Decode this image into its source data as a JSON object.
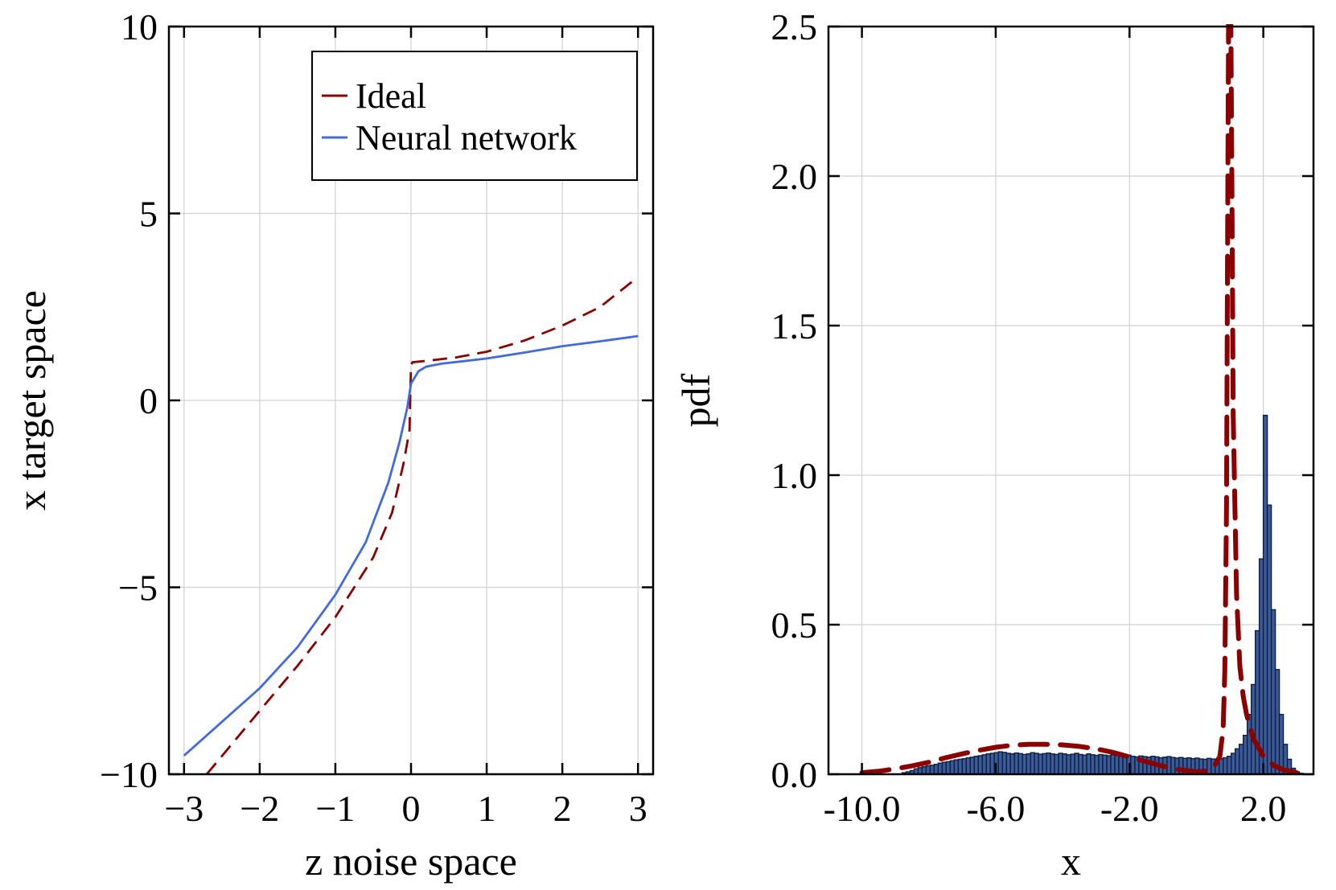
{
  "chart_data": [
    {
      "type": "line",
      "xlabel": "z noise space",
      "ylabel": "x target space",
      "xlim": [
        -3.2,
        3.2
      ],
      "ylim": [
        -10,
        10
      ],
      "xticks": [
        "−3",
        "−2",
        "−1",
        "0",
        "1",
        "2",
        "3"
      ],
      "yticks": [
        "−10",
        "−5",
        "0",
        "5",
        "10"
      ],
      "grid": true,
      "legend_position": "top-right",
      "colors": {
        "ideal": "#8b0000",
        "neural": "#4169e1"
      },
      "series": [
        {
          "name": "Ideal",
          "style": "dashed",
          "x": [
            -2.7,
            -2.0,
            -1.5,
            -1.0,
            -0.5,
            -0.25,
            -0.1,
            -0.02,
            0.0,
            0.02,
            0.3,
            0.6,
            1.0,
            1.5,
            2.0,
            2.5,
            3.0
          ],
          "y": [
            -10.0,
            -8.3,
            -7.1,
            -5.8,
            -4.2,
            -3.0,
            -1.7,
            -0.8,
            0.95,
            1.02,
            1.08,
            1.15,
            1.3,
            1.6,
            2.0,
            2.5,
            3.3
          ]
        },
        {
          "name": "Neural network",
          "style": "solid",
          "x": [
            -3.0,
            -2.5,
            -2.0,
            -1.5,
            -1.0,
            -0.6,
            -0.3,
            -0.15,
            -0.05,
            0.0,
            0.1,
            0.2,
            0.4,
            0.7,
            1.0,
            1.5,
            2.0,
            2.5,
            3.0
          ],
          "y": [
            -9.5,
            -8.6,
            -7.7,
            -6.6,
            -5.2,
            -3.8,
            -2.2,
            -1.1,
            -0.2,
            0.45,
            0.78,
            0.9,
            0.98,
            1.05,
            1.12,
            1.28,
            1.45,
            1.58,
            1.72
          ]
        }
      ]
    },
    {
      "type": "histogram",
      "xlabel": "x",
      "ylabel": "pdf",
      "xlim": [
        -11.0,
        3.5
      ],
      "ylim": [
        0,
        2.5
      ],
      "xticks": [
        "-10.0",
        "-6.0",
        "-2.0",
        "2.0"
      ],
      "yticks": [
        "0.0",
        "0.5",
        "1.0",
        "1.5",
        "2.0",
        "2.5"
      ],
      "grid": true,
      "colors": {
        "bars": "#3a5a9c",
        "bar_edge": "#10203a",
        "ideal": "#8b0000"
      },
      "bins": {
        "start": -8.8,
        "width": 0.12,
        "values": [
          0.005,
          0.008,
          0.012,
          0.018,
          0.022,
          0.025,
          0.028,
          0.03,
          0.033,
          0.037,
          0.04,
          0.042,
          0.045,
          0.048,
          0.05,
          0.052,
          0.055,
          0.057,
          0.06,
          0.062,
          0.065,
          0.068,
          0.07,
          0.072,
          0.075,
          0.073,
          0.07,
          0.068,
          0.071,
          0.069,
          0.066,
          0.068,
          0.072,
          0.07,
          0.067,
          0.069,
          0.071,
          0.068,
          0.066,
          0.07,
          0.068,
          0.065,
          0.067,
          0.07,
          0.066,
          0.064,
          0.068,
          0.065,
          0.063,
          0.066,
          0.064,
          0.062,
          0.065,
          0.063,
          0.06,
          0.062,
          0.064,
          0.06,
          0.058,
          0.061,
          0.059,
          0.057,
          0.06,
          0.058,
          0.055,
          0.057,
          0.059,
          0.056,
          0.054,
          0.056,
          0.053,
          0.055,
          0.052,
          0.054,
          0.051,
          0.05,
          0.053,
          0.051,
          0.05,
          0.052,
          0.055,
          0.06,
          0.07,
          0.085,
          0.1,
          0.13,
          0.2,
          0.3,
          0.48,
          0.72,
          1.2,
          0.9,
          0.55,
          0.35,
          0.2,
          0.1,
          0.05,
          0.02,
          0.008,
          0.003
        ]
      },
      "ideal_pdf": {
        "x": [
          -10.0,
          -9.5,
          -9.0,
          -8.5,
          -8.0,
          -7.5,
          -7.0,
          -6.5,
          -6.0,
          -5.5,
          -5.0,
          -4.5,
          -4.0,
          -3.5,
          -3.0,
          -2.5,
          -2.0,
          -1.5,
          -1.0,
          -0.5,
          0.0,
          0.3,
          0.5,
          0.7,
          0.8,
          0.85,
          0.9,
          0.93,
          0.96,
          0.98,
          1.0,
          1.03,
          1.06,
          1.1,
          1.2,
          1.3,
          1.4,
          1.5,
          1.7,
          2.0,
          2.3,
          2.6,
          3.0
        ],
        "y": [
          0.005,
          0.01,
          0.018,
          0.028,
          0.04,
          0.055,
          0.068,
          0.08,
          0.09,
          0.097,
          0.1,
          0.1,
          0.098,
          0.093,
          0.085,
          0.073,
          0.058,
          0.042,
          0.027,
          0.015,
          0.008,
          0.01,
          0.02,
          0.06,
          0.15,
          0.35,
          0.9,
          1.7,
          2.5,
          2.5,
          2.5,
          2.5,
          2.0,
          1.2,
          0.6,
          0.36,
          0.26,
          0.2,
          0.12,
          0.06,
          0.03,
          0.015,
          0.005
        ]
      }
    }
  ]
}
